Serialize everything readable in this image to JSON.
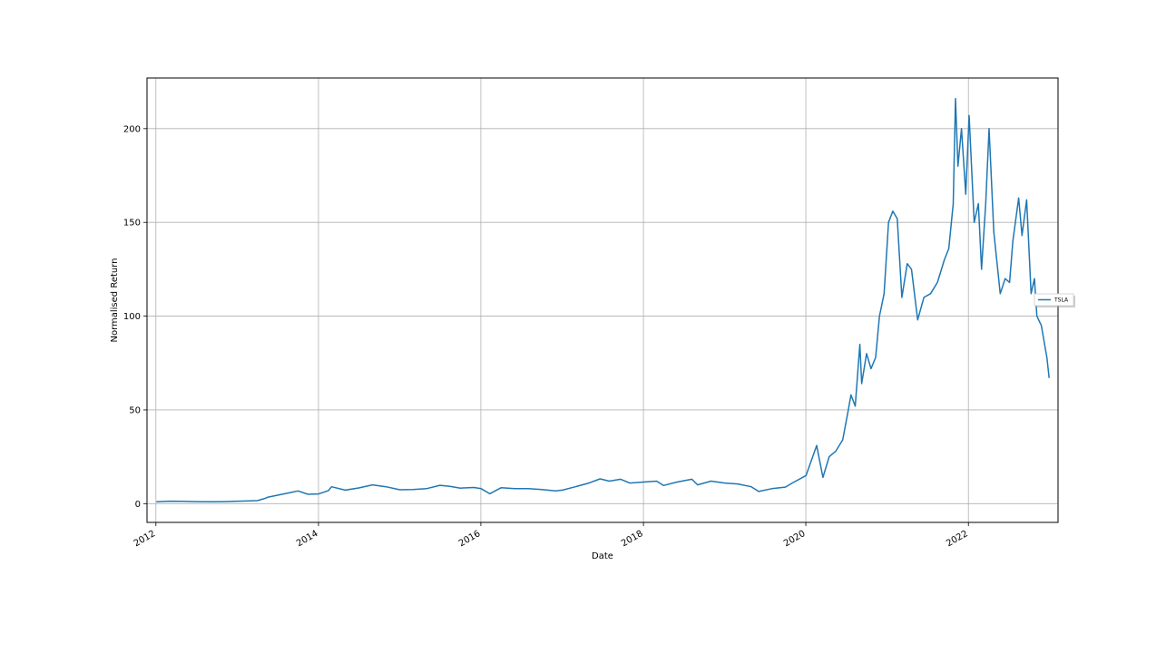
{
  "chart_data": {
    "type": "line",
    "title": "",
    "xlabel": "Date",
    "ylabel": "Normalised Return",
    "xlim": [
      "2011-11-22",
      "2023-02-08"
    ],
    "ylim": [
      -10,
      227
    ],
    "grid": true,
    "legend_position": "center-right, outside plot",
    "x_ticks": [
      "2012",
      "2014",
      "2016",
      "2018",
      "2020",
      "2022"
    ],
    "y_ticks": [
      0,
      50,
      100,
      150,
      200
    ],
    "series": [
      {
        "name": "TSLA",
        "color": "#1f77b4",
        "points": [
          [
            "2012-01-03",
            1.0
          ],
          [
            "2012-03-01",
            1.3
          ],
          [
            "2012-05-01",
            1.2
          ],
          [
            "2012-07-01",
            1.1
          ],
          [
            "2012-09-01",
            1.0
          ],
          [
            "2012-11-01",
            1.1
          ],
          [
            "2013-01-02",
            1.3
          ],
          [
            "2013-03-01",
            1.5
          ],
          [
            "2013-04-01",
            1.6
          ],
          [
            "2013-05-01",
            2.6
          ],
          [
            "2013-05-20",
            3.5
          ],
          [
            "2013-07-01",
            4.5
          ],
          [
            "2013-09-01",
            6.0
          ],
          [
            "2013-10-01",
            6.8
          ],
          [
            "2013-11-15",
            5.0
          ],
          [
            "2014-01-02",
            5.2
          ],
          [
            "2014-02-15",
            7.0
          ],
          [
            "2014-03-01",
            9.0
          ],
          [
            "2014-05-01",
            7.2
          ],
          [
            "2014-07-01",
            8.4
          ],
          [
            "2014-09-01",
            10.0
          ],
          [
            "2014-11-01",
            9.0
          ],
          [
            "2015-01-02",
            7.4
          ],
          [
            "2015-03-01",
            7.5
          ],
          [
            "2015-05-01",
            8.0
          ],
          [
            "2015-07-01",
            9.8
          ],
          [
            "2015-08-15",
            9.2
          ],
          [
            "2015-10-01",
            8.3
          ],
          [
            "2015-12-01",
            8.6
          ],
          [
            "2016-01-02",
            8.0
          ],
          [
            "2016-02-10",
            5.3
          ],
          [
            "2016-04-01",
            8.5
          ],
          [
            "2016-06-01",
            8.0
          ],
          [
            "2016-08-01",
            8.0
          ],
          [
            "2016-10-01",
            7.5
          ],
          [
            "2016-12-01",
            6.8
          ],
          [
            "2017-01-02",
            7.2
          ],
          [
            "2017-03-01",
            9.0
          ],
          [
            "2017-05-01",
            11.0
          ],
          [
            "2017-06-20",
            13.2
          ],
          [
            "2017-08-01",
            12.0
          ],
          [
            "2017-09-20",
            13.0
          ],
          [
            "2017-11-01",
            11.0
          ],
          [
            "2018-01-02",
            11.5
          ],
          [
            "2018-03-01",
            12.0
          ],
          [
            "2018-04-01",
            9.7
          ],
          [
            "2018-06-01",
            11.5
          ],
          [
            "2018-08-07",
            13.0
          ],
          [
            "2018-09-01",
            10.0
          ],
          [
            "2018-11-01",
            12.0
          ],
          [
            "2019-01-02",
            11.0
          ],
          [
            "2019-03-01",
            10.5
          ],
          [
            "2019-05-01",
            9.0
          ],
          [
            "2019-06-03",
            6.5
          ],
          [
            "2019-08-01",
            8.0
          ],
          [
            "2019-10-01",
            8.8
          ],
          [
            "2019-11-01",
            11.0
          ],
          [
            "2020-01-02",
            15.0
          ],
          [
            "2020-02-19",
            31.0
          ],
          [
            "2020-03-18",
            14.0
          ],
          [
            "2020-04-15",
            25.0
          ],
          [
            "2020-05-15",
            28.0
          ],
          [
            "2020-06-15",
            34.0
          ],
          [
            "2020-07-10",
            50.0
          ],
          [
            "2020-07-22",
            58.0
          ],
          [
            "2020-08-10",
            52.0
          ],
          [
            "2020-08-31",
            85.0
          ],
          [
            "2020-09-08",
            64.0
          ],
          [
            "2020-09-30",
            80.0
          ],
          [
            "2020-10-20",
            72.0
          ],
          [
            "2020-11-10",
            78.0
          ],
          [
            "2020-11-27",
            100.0
          ],
          [
            "2020-12-18",
            112.0
          ],
          [
            "2021-01-07",
            150.0
          ],
          [
            "2021-01-26",
            156.0
          ],
          [
            "2021-02-15",
            152.0
          ],
          [
            "2021-03-08",
            110.0
          ],
          [
            "2021-04-01",
            128.0
          ],
          [
            "2021-04-20",
            125.0
          ],
          [
            "2021-05-18",
            98.0
          ],
          [
            "2021-06-15",
            110.0
          ],
          [
            "2021-07-15",
            112.0
          ],
          [
            "2021-08-15",
            118.0
          ],
          [
            "2021-09-15",
            130.0
          ],
          [
            "2021-10-05",
            136.0
          ],
          [
            "2021-10-25",
            160.0
          ],
          [
            "2021-11-04",
            216.0
          ],
          [
            "2021-11-15",
            180.0
          ],
          [
            "2021-12-01",
            200.0
          ],
          [
            "2021-12-20",
            165.0
          ],
          [
            "2022-01-04",
            207.0
          ],
          [
            "2022-01-27",
            150.0
          ],
          [
            "2022-02-15",
            160.0
          ],
          [
            "2022-03-01",
            125.0
          ],
          [
            "2022-03-20",
            160.0
          ],
          [
            "2022-04-04",
            200.0
          ],
          [
            "2022-04-25",
            145.0
          ],
          [
            "2022-05-24",
            112.0
          ],
          [
            "2022-06-15",
            120.0
          ],
          [
            "2022-07-05",
            118.0
          ],
          [
            "2022-07-20",
            140.0
          ],
          [
            "2022-08-15",
            163.0
          ],
          [
            "2022-08-30",
            143.0
          ],
          [
            "2022-09-20",
            162.0
          ],
          [
            "2022-10-10",
            112.0
          ],
          [
            "2022-10-25",
            120.0
          ],
          [
            "2022-11-05",
            100.0
          ],
          [
            "2022-11-25",
            95.0
          ],
          [
            "2022-12-05",
            88.0
          ],
          [
            "2022-12-20",
            78.0
          ],
          [
            "2022-12-30",
            67.0
          ]
        ]
      }
    ]
  }
}
